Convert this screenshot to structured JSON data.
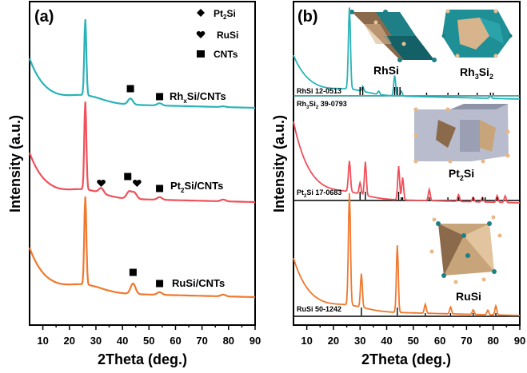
{
  "chart_data": [
    {
      "type": "line",
      "panel_label": "(a)",
      "xlabel": "2Theta (deg.)",
      "ylabel": "Intensity (a.u.)",
      "xlim": [
        5,
        90
      ],
      "xticks": [
        10,
        20,
        30,
        40,
        50,
        60,
        70,
        80,
        90
      ],
      "legend": [
        {
          "symbol": "diamond",
          "label": "Pt2Si"
        },
        {
          "symbol": "heart",
          "label": "RuSi"
        },
        {
          "symbol": "square",
          "label": "CNTs"
        }
      ],
      "series": [
        {
          "name": "RhxSi/CNTs",
          "color": "#2ab3b8",
          "peaks": [
            {
              "x": 26,
              "rel": 1.0
            },
            {
              "x": 43,
              "rel": 0.08
            },
            {
              "x": 54,
              "rel": 0.03
            },
            {
              "x": 78,
              "rel": 0.01
            }
          ],
          "markers": [
            {
              "symbol": "square",
              "x": 43
            },
            {
              "symbol": "square",
              "x": 54
            }
          ]
        },
        {
          "name": "Pt2Si/CNTs",
          "color": "#f0505a",
          "peaks": [
            {
              "x": 26,
              "rel": 1.0
            },
            {
              "x": 32,
              "rel": 0.06
            },
            {
              "x": 42.5,
              "rel": 0.08
            },
            {
              "x": 44.5,
              "rel": 0.07
            },
            {
              "x": 54,
              "rel": 0.03
            },
            {
              "x": 78,
              "rel": 0.02
            }
          ],
          "markers": [
            {
              "symbol": "heart",
              "x": 32
            },
            {
              "symbol": "square",
              "x": 42
            },
            {
              "symbol": "heart",
              "x": 45.5
            },
            {
              "symbol": "square",
              "x": 54
            }
          ]
        },
        {
          "name": "RuSi/CNTs",
          "color": "#f0782d",
          "peaks": [
            {
              "x": 26,
              "rel": 1.0
            },
            {
              "x": 44,
              "rel": 0.12
            },
            {
              "x": 54,
              "rel": 0.03
            },
            {
              "x": 78,
              "rel": 0.02
            }
          ],
          "markers": [
            {
              "symbol": "square",
              "x": 44
            },
            {
              "symbol": "square",
              "x": 54
            }
          ]
        }
      ],
      "series_labels": [
        "Rh",
        "x",
        "Si/CNTs",
        "Pt",
        "2",
        "Si/CNTs",
        "RuSi/CNTs"
      ]
    },
    {
      "type": "line",
      "panel_label": "(b)",
      "xlabel": "2Theta (deg.)",
      "ylabel": "Intensity (a.u.)",
      "xlim": [
        5,
        90
      ],
      "xticks": [
        10,
        20,
        30,
        40,
        50,
        60,
        70,
        80,
        90
      ],
      "panels": [
        {
          "name": "RhxSi",
          "color": "#2ab3b8",
          "peaks": [
            {
              "x": 26,
              "rel": 1.0
            },
            {
              "x": 31,
              "rel": 0.06
            },
            {
              "x": 37,
              "rel": 0.04
            },
            {
              "x": 43,
              "rel": 0.25
            },
            {
              "x": 45.5,
              "rel": 0.06
            },
            {
              "x": 79,
              "rel": 0.03
            }
          ],
          "references": [
            {
              "label": "RhSi 12-0513",
              "sticks": [
                30,
                31,
                43,
                44,
                45,
                55,
                63,
                67,
                74,
                79,
                80
              ]
            },
            {
              "label": "Rh3Si2 39-0793"
            }
          ],
          "structures": [
            "RhSi",
            "Rh3Si2"
          ]
        },
        {
          "name": "Pt2Si",
          "color": "#f0505a",
          "peaks": [
            {
              "x": 26,
              "rel": 0.55
            },
            {
              "x": 30,
              "rel": 0.2
            },
            {
              "x": 32,
              "rel": 0.6
            },
            {
              "x": 44.5,
              "rel": 0.6
            },
            {
              "x": 46,
              "rel": 0.4
            },
            {
              "x": 56,
              "rel": 0.2
            },
            {
              "x": 67,
              "rel": 0.12
            },
            {
              "x": 72.5,
              "rel": 0.08
            },
            {
              "x": 76,
              "rel": 0.08
            },
            {
              "x": 81.5,
              "rel": 0.12
            },
            {
              "x": 84.5,
              "rel": 0.12
            }
          ],
          "references": [
            {
              "label": "Pt2Si 17-0683",
              "sticks": [
                30,
                32,
                44.5,
                45.5,
                46,
                56,
                63,
                67,
                72.5,
                76,
                77,
                81.5
              ]
            }
          ],
          "structures": [
            "Pt2Si"
          ]
        },
        {
          "name": "RuSi",
          "color": "#f0782d",
          "peaks": [
            {
              "x": 26,
              "rel": 1.0
            },
            {
              "x": 30.5,
              "rel": 0.3
            },
            {
              "x": 44,
              "rel": 0.6
            },
            {
              "x": 54.5,
              "rel": 0.08
            },
            {
              "x": 64,
              "rel": 0.06
            },
            {
              "x": 72.5,
              "rel": 0.04
            },
            {
              "x": 78,
              "rel": 0.04
            },
            {
              "x": 81,
              "rel": 0.08
            }
          ],
          "references": [
            {
              "label": "RuSi 50-1242",
              "sticks": [
                30.5,
                44,
                54.5,
                64,
                72.5,
                81
              ]
            }
          ],
          "structures": [
            "RuSi"
          ]
        }
      ]
    }
  ],
  "text": {
    "panel_a": "(a)",
    "panel_b": "(b)",
    "xlabel": "2Theta (deg.)",
    "ylabel": "Intensity (a.u.)",
    "legend_pt2si_main": "Pt",
    "legend_pt2si_sub": "2",
    "legend_pt2si_end": "Si",
    "legend_rusi": "RuSi",
    "legend_cnts": "CNTs",
    "rh_main": "Rh",
    "rh_sub": "x",
    "rh_end": "Si/CNTs",
    "pt_main": "Pt",
    "pt_sub": "2",
    "pt_end": "Si/CNTs",
    "ru_label": "RuSi/CNTs",
    "ref_rhsi": "RhSi 12-0513",
    "ref_rh3si2_a": "Rh",
    "ref_rh3si2_b": "3",
    "ref_rh3si2_c": "Si",
    "ref_rh3si2_d": "2",
    "ref_rh3si2_e": " 39-0793",
    "ref_pt2si_a": "Pt",
    "ref_pt2si_b": "2",
    "ref_pt2si_c": "Si 17-0683",
    "ref_rusi": "RuSi 50-1242",
    "struct_rhsi": "RhSi",
    "struct_rh3si2_a": "Rh",
    "struct_rh3si2_b": "3",
    "struct_rh3si2_c": "Si",
    "struct_rh3si2_d": "2",
    "struct_pt2si_a": "Pt",
    "struct_pt2si_b": "2",
    "struct_pt2si_c": "Si",
    "struct_rusi": "RuSi"
  }
}
